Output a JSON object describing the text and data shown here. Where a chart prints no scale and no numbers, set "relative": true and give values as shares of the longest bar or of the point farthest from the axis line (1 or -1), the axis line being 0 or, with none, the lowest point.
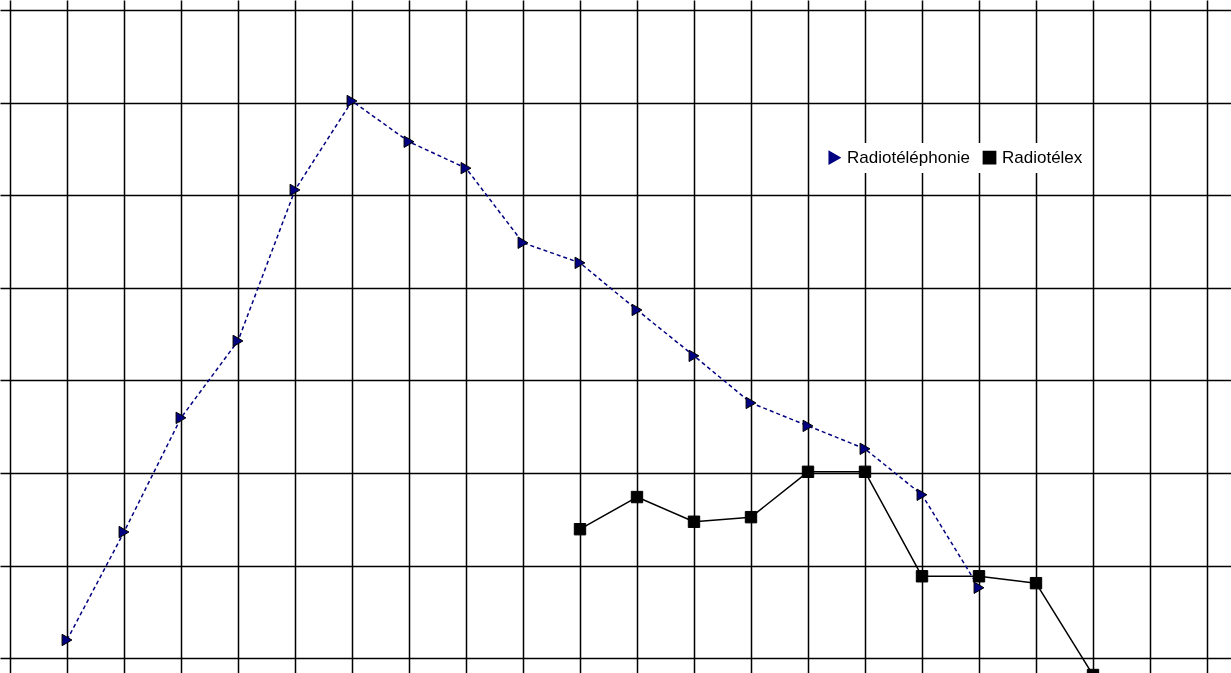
{
  "chart_data": {
    "type": "line",
    "relative": true,
    "grid": true,
    "legend": "top right",
    "categories": [
      null,
      null,
      null,
      null,
      null,
      null,
      null,
      null,
      null,
      null,
      null,
      null,
      null,
      null,
      null,
      null,
      null,
      null,
      null,
      null,
      null,
      null
    ],
    "series": [
      {
        "name": "Radiotéléphonie",
        "color": "#000080",
        "marker": "triangle",
        "line_style": "dashed",
        "values": [
          null,
          0.061,
          0.249,
          0.448,
          0.582,
          0.845,
          1,
          0.929,
          0.883,
          0.753,
          0.718,
          0.636,
          0.556,
          0.474,
          0.434,
          0.394,
          0.314,
          0.152,
          null,
          null,
          null,
          null
        ]
      },
      {
        "name": "Radiotélex",
        "color": "#000000",
        "marker": "square",
        "line_style": "solid",
        "values": [
          null,
          null,
          null,
          null,
          null,
          null,
          null,
          null,
          null,
          null,
          0.254,
          0.31,
          0.267,
          0.275,
          0.354,
          0.354,
          0.172,
          0.172,
          0.16,
          0,
          null,
          null
        ]
      }
    ]
  }
}
